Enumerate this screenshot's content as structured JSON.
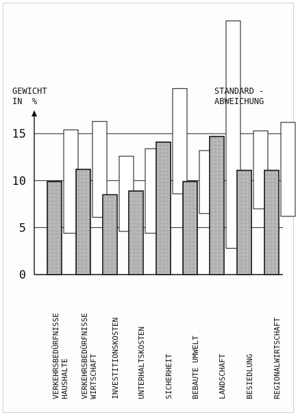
{
  "chart_data": {
    "type": "bar",
    "ylabel_line1": "GEWICHT",
    "ylabel_line2": "IN  %",
    "std_label_line1": "STANDARD -",
    "std_label_line2": "ABWEICHUNG",
    "ylim": [
      0,
      20
    ],
    "yticks": [
      {
        "value": 0,
        "label": "0"
      },
      {
        "value": 5,
        "label": "5"
      },
      {
        "value": 10,
        "label": "10"
      },
      {
        "value": 15,
        "label": "15"
      }
    ],
    "grid": true,
    "categories": [
      {
        "line1": "VERKEHRSBEDÜRFNISSE",
        "line2": "HAUSHALTE"
      },
      {
        "line1": "VERKEHRSBEDÜRFNISSE",
        "line2": "WIRTSCHAFT"
      },
      {
        "line1": "INVESTITIONSKOSTEN",
        "line2": ""
      },
      {
        "line1": "UNTERHALTSKOSTEN",
        "line2": ""
      },
      {
        "line1": "SICHERHEIT",
        "line2": ""
      },
      {
        "line1": "BEBAUTE  UMWELT",
        "line2": ""
      },
      {
        "line1": "LANDSCHAFT",
        "line2": ""
      },
      {
        "line1": "BESIEDLUNG",
        "line2": ""
      },
      {
        "line1": "REGIONALWIRTSCHAFT",
        "line2": ""
      }
    ],
    "series": [
      {
        "values": [
          9.9,
          11.2,
          8.5,
          8.9,
          14.1,
          9.9,
          14.7,
          11.1,
          11.1
        ]
      },
      {
        "values_low": [
          4.4,
          6.1,
          4.6,
          4.4,
          8.6,
          6.5,
          2.8,
          7.0,
          6.2
        ],
        "values_high": [
          15.4,
          16.3,
          12.6,
          13.4,
          19.8,
          13.2,
          27.0,
          15.3,
          16.2
        ]
      }
    ]
  },
  "colors": {
    "bar_fill": "#bdbdbd",
    "ink": "#111111",
    "grid": "#222222"
  }
}
